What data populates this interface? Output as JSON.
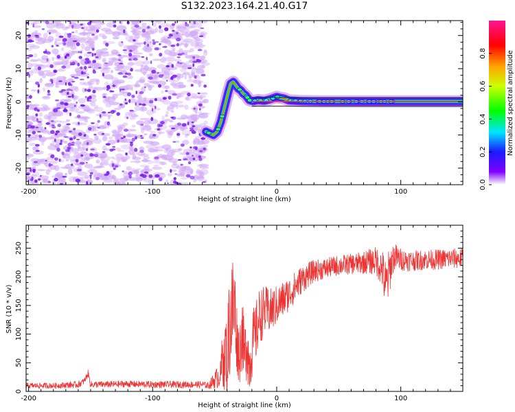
{
  "title": "S132.2023.164.21.40.G17",
  "colors": {
    "snr_line": "#ee3333",
    "noise": "#7a22ee",
    "tracking": "#222222"
  },
  "chart_data": [
    {
      "type": "heatmap",
      "title": "",
      "xlabel": "Height of straight line (km)",
      "ylabel": "Frequency (Hz)",
      "xlim": [
        -202,
        150
      ],
      "ylim": [
        -25,
        24.5
      ],
      "xticks": [
        -200,
        -100,
        0,
        100
      ],
      "yticks": [
        -20,
        -10,
        0,
        10,
        20
      ],
      "xtick_labels": [
        "-200",
        "-100",
        "0",
        "100"
      ],
      "ytick_labels": [
        "-20",
        "-10",
        "0",
        "10",
        "20"
      ],
      "grid": false,
      "noise_region_x": [
        -202,
        -57
      ],
      "noise_region_y": [
        -25,
        24.5
      ],
      "signal_ridge": {
        "x": [
          -57,
          -54,
          -51,
          -48,
          -45,
          -43,
          -41,
          -39,
          -37,
          -35,
          -33,
          -31,
          -29,
          -27,
          -25,
          -22,
          -19,
          -15,
          -10,
          -5,
          0,
          3,
          6,
          10,
          20,
          40,
          60,
          80,
          100,
          120,
          150
        ],
        "y": [
          -9,
          -9.5,
          -10,
          -9,
          -6,
          -3,
          0,
          3,
          5.5,
          6,
          5,
          4,
          3.5,
          2.5,
          2,
          0.5,
          0.2,
          0.5,
          0.3,
          0.8,
          1.5,
          1.2,
          1,
          0.4,
          0.2,
          0.1,
          0.1,
          0.1,
          0.1,
          0.1,
          0.1
        ]
      },
      "tracking_lines_y": [
        1.3,
        -1.3
      ],
      "colorbar": {
        "label": "Normalized spectral amplitude",
        "range": [
          0,
          1
        ],
        "ticks": [
          0.0,
          0.2,
          0.4,
          0.6,
          0.8
        ],
        "tick_labels": [
          "0.0",
          "0.2",
          "0.4",
          "0.6",
          "0.8"
        ]
      }
    },
    {
      "type": "line",
      "title": "",
      "xlabel": "Height of straight line (km)",
      "ylabel": "SNR (10 * v/v)",
      "xlim": [
        -202,
        150
      ],
      "ylim": [
        0,
        290
      ],
      "xticks": [
        -200,
        -100,
        0,
        100
      ],
      "yticks": [
        0,
        50,
        100,
        150,
        200,
        250
      ],
      "xtick_labels": [
        "-200",
        "-100",
        "0",
        "100"
      ],
      "ytick_labels": [
        "0",
        "50",
        "100",
        "150",
        "200",
        "250"
      ],
      "grid": false,
      "series": [
        {
          "x": [
            -202,
            -180,
            -160,
            -155,
            -152,
            -150,
            -147,
            -140,
            -120,
            -100,
            -80,
            -60,
            -55,
            -45,
            -43,
            -40,
            -38,
            -36,
            -34,
            -32,
            -30,
            -28,
            -26,
            -24,
            -22,
            -20,
            -17,
            -14,
            -10,
            -5,
            0,
            10,
            20,
            30,
            40,
            50,
            60,
            70,
            80,
            85,
            88,
            90,
            93,
            95,
            100,
            110,
            120,
            130,
            140,
            150
          ],
          "y": [
            10,
            10,
            12,
            18,
            32,
            12,
            12,
            12,
            13,
            12,
            12,
            12,
            10,
            30,
            80,
            60,
            120,
            140,
            150,
            90,
            60,
            110,
            60,
            90,
            40,
            80,
            100,
            130,
            140,
            140,
            150,
            170,
            195,
            210,
            215,
            220,
            222,
            225,
            228,
            215,
            180,
            200,
            230,
            235,
            230,
            228,
            230,
            230,
            232,
            232
          ],
          "band": [
            5,
            5,
            6,
            6,
            6,
            6,
            6,
            6,
            6,
            6,
            6,
            6,
            6,
            25,
            80,
            70,
            100,
            110,
            90,
            60,
            50,
            70,
            50,
            70,
            45,
            60,
            55,
            50,
            45,
            40,
            35,
            30,
            25,
            20,
            18,
            18,
            18,
            20,
            25,
            35,
            50,
            45,
            30,
            25,
            20,
            18,
            18,
            18,
            18,
            18
          ]
        }
      ]
    }
  ]
}
